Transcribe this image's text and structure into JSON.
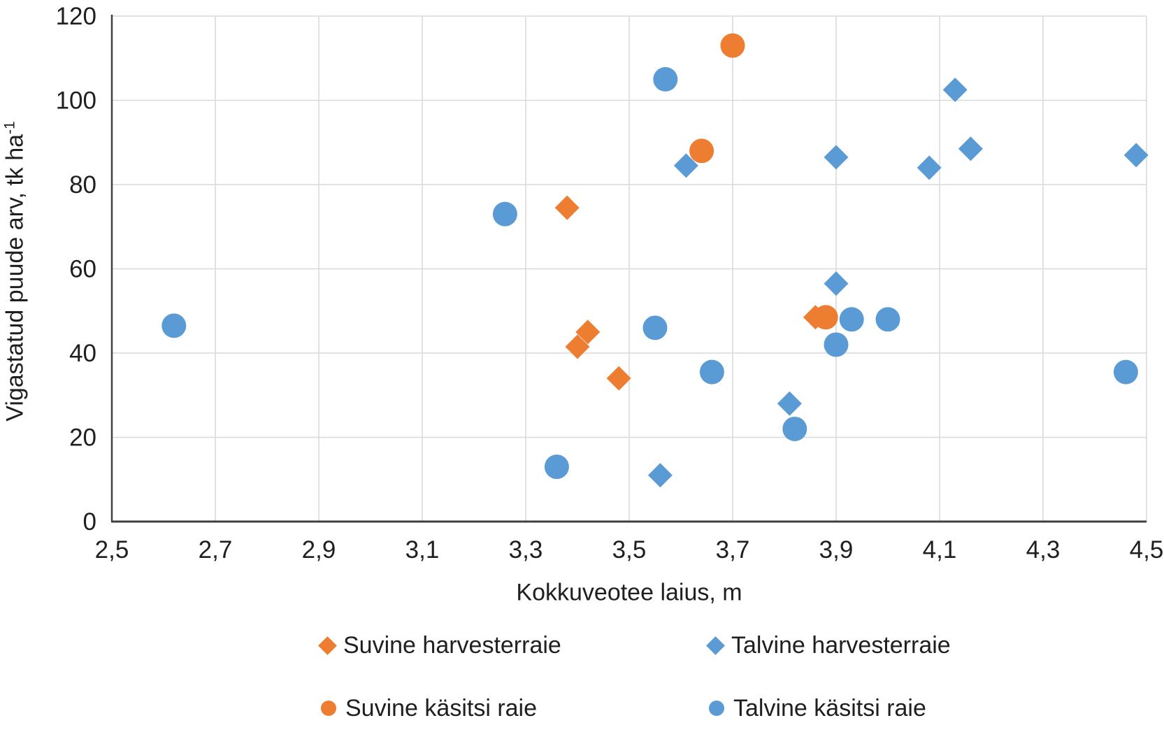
{
  "chart_data": {
    "type": "scatter",
    "title": "",
    "xlabel": "Kokkuveotee laius, m",
    "ylabel": "Vigastatud puude arv, tk ha",
    "ylabel_superscript": "-1",
    "xlim": [
      2.5,
      4.5
    ],
    "ylim": [
      0,
      120
    ],
    "x_ticks": [
      2.5,
      2.7,
      2.9,
      3.1,
      3.3,
      3.5,
      3.7,
      3.9,
      4.1,
      4.3,
      4.5
    ],
    "x_tick_labels": [
      "2,5",
      "2,7",
      "2,9",
      "3,1",
      "3,3",
      "3,5",
      "3,7",
      "3,9",
      "4,1",
      "4,3",
      "4,5"
    ],
    "y_ticks": [
      0,
      20,
      40,
      60,
      80,
      100,
      120
    ],
    "y_tick_labels": [
      "0",
      "20",
      "40",
      "60",
      "80",
      "100",
      "120"
    ],
    "grid": true,
    "legend_position": "bottom",
    "colors": {
      "summer_orange": "#ED7D31",
      "winter_blue": "#5B9BD5",
      "gridline": "#D9D9D9",
      "axis_line": "#404040",
      "text": "#1F1F1F"
    },
    "series": [
      {
        "name": "Suvine harvesterraie",
        "marker": "diamond",
        "color": "#ED7D31",
        "points": [
          [
            3.38,
            74.5
          ],
          [
            3.4,
            41.5
          ],
          [
            3.42,
            45
          ],
          [
            3.48,
            34
          ],
          [
            3.86,
            48.5
          ]
        ]
      },
      {
        "name": "Talvine harvesterraie",
        "marker": "diamond",
        "color": "#5B9BD5",
        "points": [
          [
            3.56,
            11
          ],
          [
            3.61,
            84.5
          ],
          [
            3.81,
            28
          ],
          [
            3.9,
            56.5
          ],
          [
            3.9,
            86.5
          ],
          [
            4.08,
            84
          ],
          [
            4.13,
            102.5
          ],
          [
            4.16,
            88.5
          ],
          [
            4.48,
            87
          ]
        ]
      },
      {
        "name": "Suvine käsitsi raie",
        "marker": "circle",
        "color": "#ED7D31",
        "points": [
          [
            3.64,
            88
          ],
          [
            3.7,
            113
          ],
          [
            3.88,
            48.5
          ]
        ]
      },
      {
        "name": "Talvine käsitsi raie",
        "marker": "circle",
        "color": "#5B9BD5",
        "points": [
          [
            2.62,
            46.5
          ],
          [
            3.26,
            73
          ],
          [
            3.36,
            13
          ],
          [
            3.55,
            46
          ],
          [
            3.57,
            105
          ],
          [
            3.66,
            35.5
          ],
          [
            3.82,
            22
          ],
          [
            3.9,
            42
          ],
          [
            3.93,
            48
          ],
          [
            4.0,
            48
          ],
          [
            4.46,
            35.5
          ]
        ]
      }
    ]
  }
}
